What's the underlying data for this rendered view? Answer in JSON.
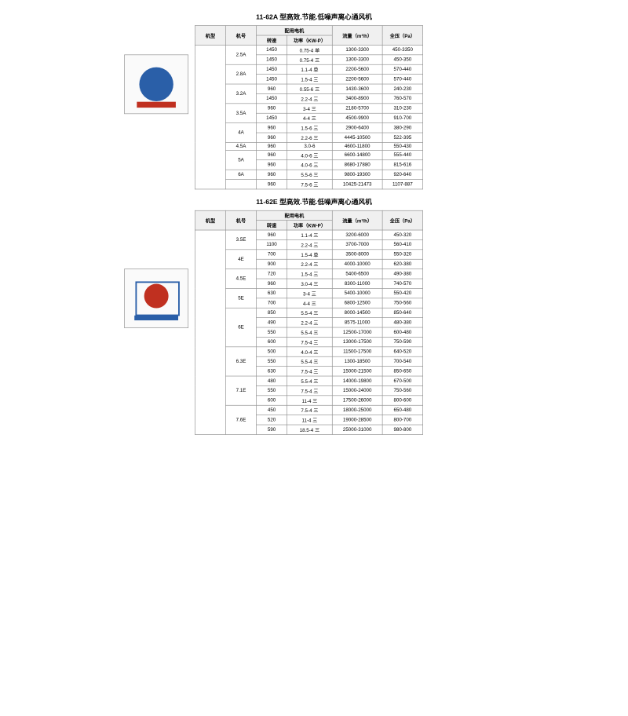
{
  "tableA": {
    "title": "11-62A 型高效.节能.低噪声离心通风机",
    "headers": {
      "model_type": "机型",
      "model_no": "机号",
      "motor": "配用电机",
      "speed": "转速",
      "power": "功率（KW-P）",
      "flow": "流量（m³/h）",
      "pressure": "全压（Pa）"
    },
    "rows": [
      {
        "mh": "2.5A",
        "mh_span": 2,
        "zs": "1450",
        "gl": "0.75-4 单",
        "ll": "1300-3300",
        "qy": "450-3350"
      },
      {
        "zs": "1450",
        "gl": "0.75-4 三",
        "ll": "1300-3300",
        "qy": "450-350"
      },
      {
        "mh": "2.8A",
        "mh_span": 2,
        "zs": "1450",
        "gl": "1.1-4 单",
        "ll": "2200-5600",
        "qy": "570-440"
      },
      {
        "zs": "1450",
        "gl": "1.5-4 三",
        "ll": "2200-5600",
        "qy": "570-440"
      },
      {
        "mh": "3.2A",
        "mh_span": 2,
        "zs": "960",
        "gl": "0.55-6 三",
        "ll": "1430-3600",
        "qy": "240-230"
      },
      {
        "zs": "1450",
        "gl": "2.2-4 三",
        "ll": "3400-8900",
        "qy": "760-570"
      },
      {
        "mh": "3.5A",
        "mh_span": 2,
        "zs": "960",
        "gl": "3-4 三",
        "ll": "2180-5700",
        "qy": "310-230"
      },
      {
        "zs": "1450",
        "gl": "4-4 三",
        "ll": "4500-9900",
        "qy": "910-700"
      },
      {
        "mh": "4A",
        "mh_span": 2,
        "zs": "960",
        "gl": "1.5-6 三",
        "ll": "2900-6400",
        "qy": "380-290"
      },
      {
        "zs": "960",
        "gl": "2.2-6 三",
        "ll": "4445-10500",
        "qy": "522-395"
      },
      {
        "mh": "4.5A",
        "mh_span": 1,
        "zs": "960",
        "gl": "3.0-6",
        "ll": "4600-11800",
        "qy": "550-430"
      },
      {
        "mh": "5A",
        "mh_span": 2,
        "zs": "960",
        "gl": "4.0-6 三",
        "ll": "6600-14800",
        "qy": "555-440"
      },
      {
        "zs": "960",
        "gl": "4.0-6 三",
        "ll": "8680-17880",
        "qy": "815-616"
      },
      {
        "mh": "6A",
        "mh_span": 1,
        "zs": "960",
        "gl": "5.5-6 三",
        "ll": "9800-19300",
        "qy": "920-640"
      },
      {
        "mh": "",
        "zs": "960",
        "gl": "7.5-6 三",
        "ll": "10425-21473",
        "qy": "1107-887"
      }
    ]
  },
  "tableE": {
    "title": "11-62E 型高效.节能.低噪声离心通风机",
    "headers": {
      "model_type": "机型",
      "model_no": "机号",
      "motor": "配用电机",
      "speed": "转速",
      "power": "功率（KW-P）",
      "flow": "流量（m³/h）",
      "pressure": "全压（Pa）"
    },
    "rows": [
      {
        "mh": "3.5E",
        "mh_span": 2,
        "zs": "960",
        "gl": "1.1-4 三",
        "ll": "3200-6000",
        "qy": "450-320"
      },
      {
        "zs": "1100",
        "gl": "2.2-4 三",
        "ll": "3700-7000",
        "qy": "560-410"
      },
      {
        "mh": "4E",
        "mh_span": 2,
        "zs": "700",
        "gl": "1.5-4 单",
        "ll": "3500-8000",
        "qy": "550-320"
      },
      {
        "zs": "900",
        "gl": "2.2-4 三",
        "ll": "4000-10000",
        "qy": "620-380"
      },
      {
        "mh": "4.5E",
        "mh_span": 2,
        "zs": "720",
        "gl": "1.5-4 三",
        "ll": "5400-6500",
        "qy": "490-380"
      },
      {
        "zs": "960",
        "gl": "3.0-4 三",
        "ll": "8300-11000",
        "qy": "740-570"
      },
      {
        "mh": "5E",
        "mh_span": 2,
        "zs": "630",
        "gl": "3-4 三",
        "ll": "5400-10000",
        "qy": "550-420"
      },
      {
        "zs": "700",
        "gl": "4-4 三",
        "ll": "6800-12500",
        "qy": "750-560"
      },
      {
        "mh": "6E",
        "mh_span": 4,
        "zs": "850",
        "gl": "5.5-4 三",
        "ll": "8000-14500",
        "qy": "850-640"
      },
      {
        "zs": "490",
        "gl": "2.2-4 三",
        "ll": "8575-11000",
        "qy": "480-380"
      },
      {
        "zs": "550",
        "gl": "5.5-4 三",
        "ll": "12500-17000",
        "qy": "600-480"
      },
      {
        "zs": "600",
        "gl": "7.5-4 三",
        "ll": "13000-17500",
        "qy": "750-590"
      },
      {
        "mh": "6.3E",
        "mh_span": 3,
        "zs": "500",
        "gl": "4.0-4 三",
        "ll": "11500-17500",
        "qy": "640-520"
      },
      {
        "zs": "550",
        "gl": "5.5-4 三",
        "ll": "1300-18500",
        "qy": "700-540"
      },
      {
        "zs": "630",
        "gl": "7.5-4 三",
        "ll": "15000-21500",
        "qy": "850-650"
      },
      {
        "mh": "7.1E",
        "mh_span": 3,
        "zs": "480",
        "gl": "5.5-4 三",
        "ll": "14000-19800",
        "qy": "670-500"
      },
      {
        "zs": "550",
        "gl": "7.5-4 三",
        "ll": "15000-24000",
        "qy": "750-560"
      },
      {
        "zs": "600",
        "gl": "11-4 三",
        "ll": "17500-26000",
        "qy": "800-600"
      },
      {
        "mh": "7.6E",
        "mh_span": 3,
        "zs": "450",
        "gl": "7.5-4 三",
        "ll": "18000-25000",
        "qy": "650-480"
      },
      {
        "zs": "520",
        "gl": "11-4 三",
        "ll": "19000-28500",
        "qy": "800-700"
      },
      {
        "zs": "590",
        "gl": "18.5-4 三",
        "ll": "25000-31000",
        "qy": "980-800"
      }
    ]
  }
}
